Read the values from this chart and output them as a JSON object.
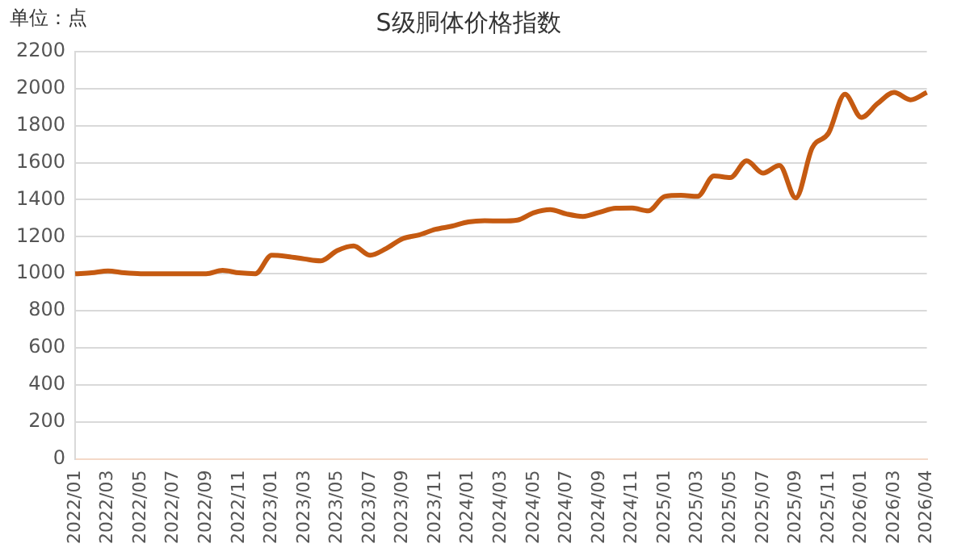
{
  "chart_data": {
    "type": "line",
    "title": "S级胴体价格指数",
    "annotations": [
      "单位：点"
    ],
    "categories": [
      "2022/01",
      null,
      "2022/03",
      null,
      "2022/05",
      null,
      "2022/07",
      null,
      "2022/09",
      null,
      "2022/11",
      null,
      "2023/01",
      null,
      "2023/03",
      null,
      "2023/05",
      null,
      "2023/07",
      null,
      "2023/09",
      null,
      "2023/11",
      null,
      "2024/01",
      null,
      "2024/03",
      null,
      "2024/05",
      null,
      "2024/07",
      null,
      "2024/09",
      null,
      "2024/11",
      null,
      "2025/01",
      null,
      "2025/03",
      null,
      "2025/05",
      null,
      "2025/07",
      null,
      "2025/09",
      null,
      "2025/11",
      null,
      "2026/01",
      null,
      "2026/03",
      null,
      "2026/04"
    ],
    "series": [
      {
        "color": "#c55a11",
        "values": [
          1000,
          1005,
          1015,
          1005,
          1000,
          1000,
          1000,
          1000,
          1000,
          1018,
          1005,
          1000,
          1100,
          1093,
          1080,
          1070,
          1125,
          1150,
          1100,
          1137,
          1190,
          1210,
          1240,
          1257,
          1280,
          1287,
          1285,
          1290,
          1330,
          1347,
          1323,
          1310,
          1332,
          1354,
          1355,
          1340,
          1418,
          1424,
          1418,
          1529,
          1520,
          1610,
          1544,
          1585,
          1410,
          1680,
          1760,
          1970,
          1845,
          1920,
          1980,
          1940,
          1980
        ]
      }
    ],
    "ylim": [
      0,
      2200
    ],
    "yticks": [
      0,
      200,
      400,
      600,
      800,
      1000,
      1200,
      1400,
      1600,
      1800,
      2000,
      2200
    ],
    "grid": "y",
    "legend": false,
    "marker": "none",
    "line_style": "solid"
  }
}
